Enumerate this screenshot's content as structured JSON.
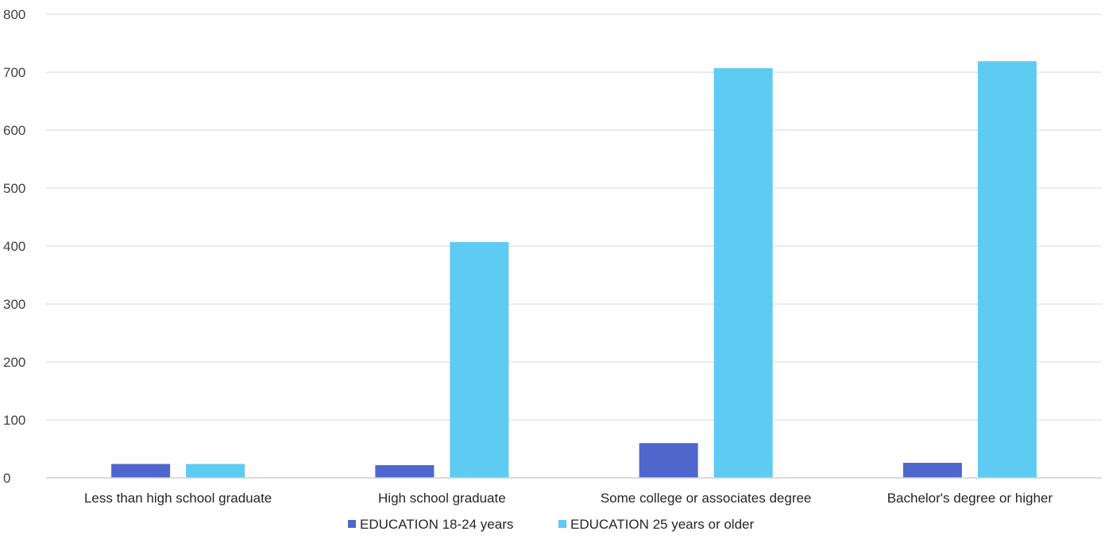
{
  "chart_data": {
    "type": "bar",
    "categories": [
      "Less than high school graduate",
      "High school graduate",
      "Some college or associates degree",
      "Bachelor's degree or higher"
    ],
    "series": [
      {
        "name": "EDUCATION 18-24 years",
        "values": [
          24,
          22,
          60,
          26
        ],
        "color": "#4f67cc"
      },
      {
        "name": "EDUCATION 25 years or older",
        "values": [
          24,
          407,
          707,
          719
        ],
        "color": "#5ecbf2"
      }
    ],
    "yticks": [
      "0",
      "100",
      "200",
      "300",
      "400",
      "500",
      "600",
      "700",
      "800"
    ],
    "ylim": [
      0,
      800
    ],
    "grid": true,
    "legend_position": "bottom"
  }
}
